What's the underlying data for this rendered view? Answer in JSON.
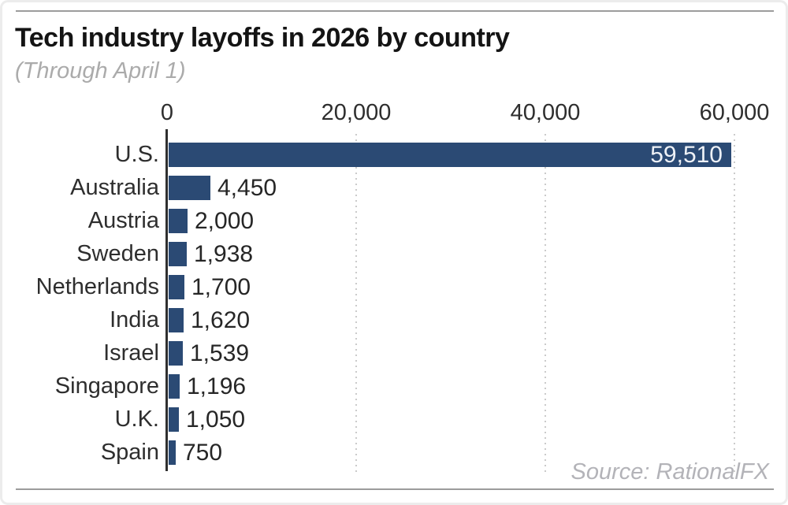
{
  "header": {
    "title": "Tech industry layoffs in 2026 by country",
    "subtitle": "(Through April 1)"
  },
  "source_note": "Source: RationalFX",
  "chart_data": {
    "type": "bar",
    "orientation": "horizontal",
    "title": "Tech industry layoffs in 2026 by country",
    "subtitle": "(Through April 1)",
    "categories": [
      "U.S.",
      "Australia",
      "Austria",
      "Sweden",
      "Netherlands",
      "India",
      "Israel",
      "Singapore",
      "U.K.",
      "Spain"
    ],
    "values": [
      59510,
      4450,
      2000,
      1938,
      1700,
      1620,
      1539,
      1196,
      1050,
      750
    ],
    "value_labels": [
      "59,510",
      "4,450",
      "2,000",
      "1,938",
      "1,700",
      "1,620",
      "1,539",
      "1,196",
      "1,050",
      "750"
    ],
    "x_ticks": [
      {
        "value": 0,
        "label": "0"
      },
      {
        "value": 20000,
        "label": "20,000"
      },
      {
        "value": 40000,
        "label": "40,000"
      },
      {
        "value": 60000,
        "label": "60,000"
      }
    ],
    "xlim": [
      0,
      60000
    ],
    "grid": "dotted-vertical",
    "legend": "none",
    "source": "Source: RationalFX",
    "colors": {
      "bar": "#2b4a74",
      "value_inside": "#eef1f6",
      "value_outside": "#262626",
      "axis_line": "#2f2f2f",
      "grid": "#cbcbcb",
      "title": "#141414",
      "subtitle": "#ababab",
      "source": "#b3b3b8"
    }
  }
}
